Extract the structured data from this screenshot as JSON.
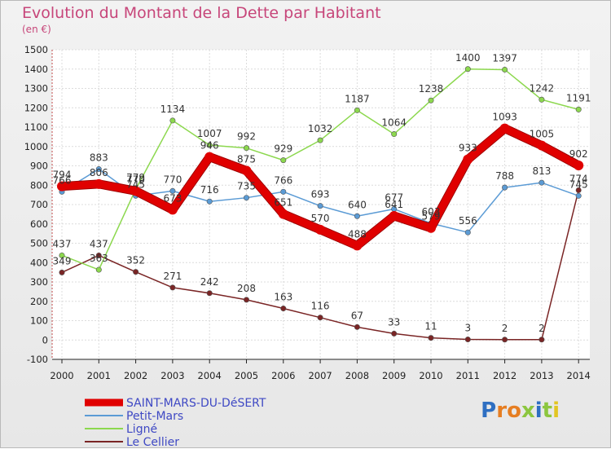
{
  "header": {
    "title": "Evolution du Montant de la Dette par Habitant",
    "subtitle": "(en €)"
  },
  "logo": {
    "text": "Proxiti",
    "colors": [
      "#2e6fc2",
      "#e67e22",
      "#e67e22",
      "#8cc63f",
      "#2e6fc2",
      "#8cc63f",
      "#e2c522"
    ]
  },
  "chart_data": {
    "type": "line",
    "title": "Evolution du Montant de la Dette par Habitant",
    "subtitle": "(en €)",
    "x": [
      "2000",
      "2001",
      "2002",
      "2003",
      "2004",
      "2005",
      "2006",
      "2007",
      "2008",
      "2009",
      "2010",
      "2011",
      "2012",
      "2013",
      "2014"
    ],
    "ylim": [
      -100,
      1500
    ],
    "yticks": [
      -100,
      0,
      100,
      200,
      300,
      400,
      500,
      600,
      700,
      800,
      900,
      1000,
      1100,
      1200,
      1300,
      1400,
      1500
    ],
    "grid": true,
    "legend": "bottom-left",
    "series": [
      {
        "name": "SAINT-MARS-DU-DéSERT",
        "color": "#e00000",
        "width": 9,
        "values": [
          794,
          806,
          770,
          673,
          946,
          875,
          651,
          570,
          488,
          641,
          579,
          933,
          1093,
          1005,
          902
        ]
      },
      {
        "name": "Petit-Mars",
        "color": "#5b9bd5",
        "width": 1.5,
        "values": [
          766,
          883,
          745,
          770,
          716,
          735,
          766,
          693,
          640,
          677,
          603,
          556,
          788,
          813,
          745
        ]
      },
      {
        "name": "Ligné",
        "color": "#8cd84e",
        "width": 1.5,
        "values": [
          437,
          363,
          779,
          1134,
          1007,
          992,
          929,
          1032,
          1187,
          1064,
          1238,
          1400,
          1397,
          1242,
          1191
        ]
      },
      {
        "name": "Le Cellier",
        "color": "#7a2525",
        "width": 1.5,
        "values": [
          349,
          437,
          352,
          271,
          242,
          208,
          163,
          116,
          67,
          33,
          11,
          3,
          2,
          2,
          774
        ]
      }
    ]
  }
}
